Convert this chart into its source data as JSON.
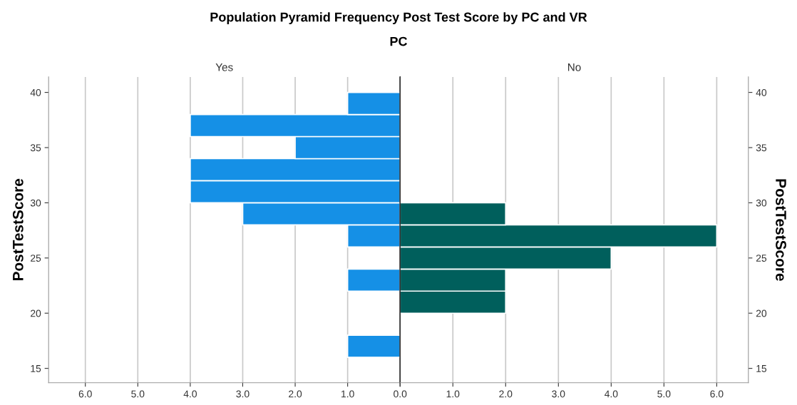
{
  "chart_data": [
    {
      "type": "other",
      "title": "Population Pyramid Frequency Post Test Score by PC and VR",
      "subtitle": "PC"
    },
    {
      "type": "histogram",
      "orientation": "horizontal",
      "x2label": "Yes",
      "ylabel": "PostTestScore",
      "bins": [
        16,
        18,
        20,
        22,
        24,
        26,
        28,
        30,
        32,
        34,
        36,
        38,
        40
      ],
      "values": [
        1,
        null,
        null,
        1,
        null,
        1,
        3,
        4,
        4,
        2,
        4,
        1
      ],
      "color": "#1590e6",
      "xlim": [
        6.7,
        0
      ],
      "xticks": [
        {
          "value": 6,
          "label": "6.0"
        },
        {
          "value": 5,
          "label": "5.0"
        },
        {
          "value": 4,
          "label": "4.0"
        },
        {
          "value": 3,
          "label": "3.0"
        },
        {
          "value": 2,
          "label": "2.0"
        },
        {
          "value": 1,
          "label": "1.0"
        },
        {
          "value": 0,
          "label": "0.0"
        }
      ],
      "ylim": [
        13.7,
        41.4
      ],
      "yticks": [
        15,
        20,
        25,
        30,
        35,
        40
      ],
      "grid": "x"
    },
    {
      "type": "histogram",
      "orientation": "horizontal",
      "x2label": "No",
      "y2label": "PostTestScore",
      "bins": [
        20,
        22,
        24,
        26,
        28,
        30
      ],
      "values": [
        2,
        2,
        4,
        6,
        2
      ],
      "color": "#005f5c",
      "xlim": [
        0,
        6.6
      ],
      "xticks": [
        {
          "value": 0,
          "label": null
        },
        {
          "value": 1,
          "label": "1.0"
        },
        {
          "value": 2,
          "label": "2.0"
        },
        {
          "value": 3,
          "label": "3.0"
        },
        {
          "value": 4,
          "label": "4.0"
        },
        {
          "value": 5,
          "label": "5.0"
        },
        {
          "value": 6,
          "label": "6.0"
        }
      ],
      "ylim": [
        13.7,
        41.4
      ],
      "yticks": [
        15,
        20,
        25,
        30,
        35,
        40
      ],
      "grid": "x"
    }
  ]
}
